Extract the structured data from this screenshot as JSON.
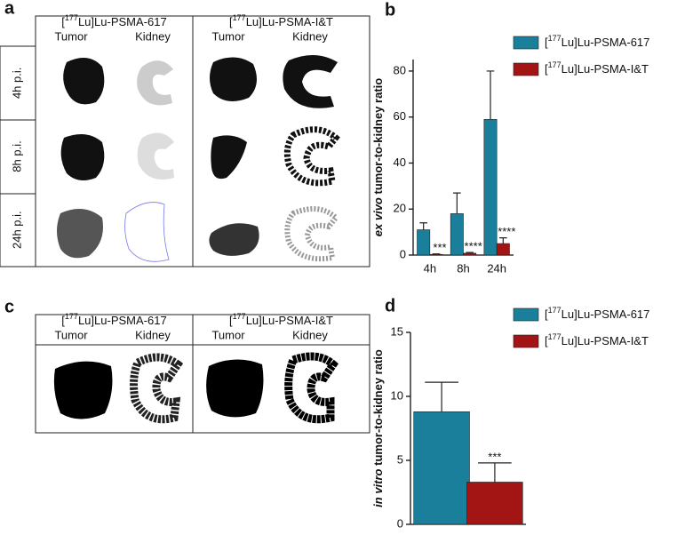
{
  "figure_a": {
    "label": "a",
    "groups": [
      {
        "name": "[177Lu]Lu-PSMA-617",
        "columns": [
          "Tumor",
          "Kidney"
        ]
      },
      {
        "name": "[177Lu]Lu-PSMA-I&T",
        "columns": [
          "Tumor",
          "Kidney"
        ]
      }
    ],
    "rows": [
      "4h p.i.",
      "8h p.i.",
      "24h p.i."
    ]
  },
  "figure_c": {
    "label": "c",
    "groups": [
      {
        "name": "[177Lu]Lu-PSMA-617",
        "columns": [
          "Tumor",
          "Kidney"
        ]
      },
      {
        "name": "[177Lu]Lu-PSMA-I&T",
        "columns": [
          "Tumor",
          "Kidney"
        ]
      }
    ]
  },
  "chart_data": [
    {
      "type": "bar",
      "label": "b",
      "y_label": "ex vivo tumor-to-kidney ratio",
      "categories": [
        "4h",
        "8h",
        "24h"
      ],
      "series": [
        {
          "name": "[177Lu]Lu-PSMA-617",
          "color": "#1a7f9a",
          "values": [
            11,
            18,
            59
          ],
          "errors": [
            3,
            9,
            21
          ]
        },
        {
          "name": "[177Lu]Lu-PSMA-I&T",
          "color": "#a31515",
          "values": [
            0.3,
            0.8,
            5
          ],
          "errors": [
            0.2,
            0.3,
            2.5
          ]
        }
      ],
      "annotations": [
        "***",
        "****",
        "****"
      ],
      "ylim": [
        0,
        85
      ],
      "yticks": [
        0,
        20,
        40,
        60,
        80
      ]
    },
    {
      "type": "bar",
      "label": "d",
      "y_label": "in vitro tumor-to-kidney ratio",
      "categories": [
        null
      ],
      "series": [
        {
          "name": "[177Lu]Lu-PSMA-617",
          "color": "#1a7f9a",
          "values": [
            8.8
          ],
          "errors": [
            2.3
          ]
        },
        {
          "name": "[177Lu]Lu-PSMA-I&T",
          "color": "#a31515",
          "values": [
            3.3
          ],
          "errors": [
            1.5
          ]
        }
      ],
      "annotations": [
        "***"
      ],
      "ylim": [
        0,
        15
      ],
      "yticks": [
        0,
        5,
        10,
        15
      ]
    }
  ]
}
